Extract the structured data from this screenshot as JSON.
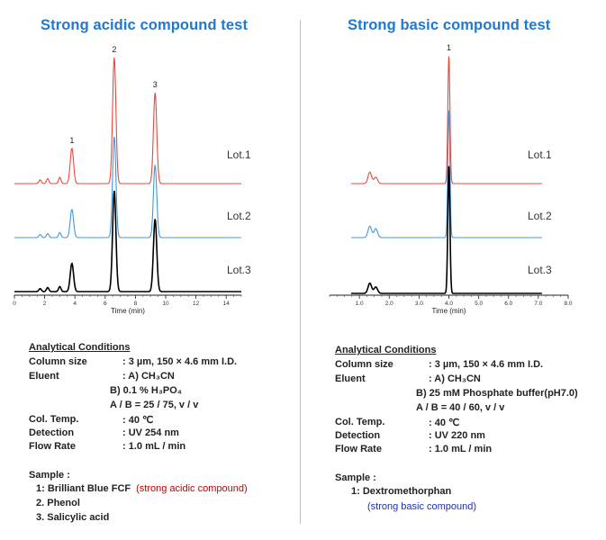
{
  "left": {
    "title": "Strong acidic compound test",
    "chart_data": {
      "type": "line",
      "title": "Strong acidic compound test",
      "xlabel": "Time (min)",
      "ylabel": "",
      "xlim": [
        0,
        15
      ],
      "x_ticks": [
        0,
        2,
        4,
        6,
        8,
        10,
        12,
        14
      ],
      "x_tick_labels": [
        "0",
        "2",
        "4",
        "6",
        "8",
        "10",
        "12",
        "14"
      ],
      "peaks": [
        {
          "label": "1",
          "time": 3.8
        },
        {
          "label": "2",
          "time": 6.6
        },
        {
          "label": "3",
          "time": 9.3
        }
      ],
      "series": [
        {
          "name": "Lot.1",
          "color": "#e8483a",
          "peak_heights": [
            0.28,
            1.0,
            0.72
          ],
          "minor_peaks": [
            [
              1.7,
              0.03
            ],
            [
              2.2,
              0.04
            ],
            [
              3.0,
              0.05
            ]
          ]
        },
        {
          "name": "Lot.2",
          "color": "#3f98e0",
          "peak_heights": [
            0.28,
            1.0,
            0.72
          ],
          "minor_peaks": [
            [
              1.7,
              0.03
            ],
            [
              2.2,
              0.04
            ],
            [
              3.0,
              0.05
            ]
          ]
        },
        {
          "name": "Lot.3",
          "color": "#000000",
          "peak_heights": [
            0.28,
            1.0,
            0.72
          ],
          "minor_peaks": [
            [
              1.7,
              0.03
            ],
            [
              2.2,
              0.04
            ],
            [
              3.0,
              0.05
            ]
          ]
        }
      ]
    },
    "conditions": {
      "header": "Analytical Conditions",
      "column_label": "Column size",
      "column_value": ": 3 µm, 150 × 4.6 mm I.D.",
      "eluent_label": "Eluent",
      "eluent_a": ": A) CH₃CN",
      "eluent_b": "B) 0.1 % H₃PO₄",
      "eluent_ratio": "A / B = 25 / 75, v / v",
      "temp_label": "Col. Temp.",
      "temp_value": ": 40 ℃",
      "detect_label": "Detection",
      "detect_value": ": UV 254 nm",
      "flow_label": "Flow Rate",
      "flow_value": ": 1.0 mL / min",
      "sample_header": "Sample :",
      "sample_1": "1: Brilliant  Blue  FCF",
      "sample_1_note": "(strong acidic compound)",
      "sample_2": "2. Phenol",
      "sample_3": "3. Salicylic  acid"
    }
  },
  "right": {
    "title": "Strong basic compound test",
    "chart_data": {
      "type": "line",
      "title": "Strong basic compound test",
      "xlabel": "Time (min)",
      "ylabel": "",
      "xlim": [
        0,
        8
      ],
      "x_ticks": [
        1,
        2,
        3,
        4,
        5,
        6,
        7,
        8
      ],
      "x_tick_labels": [
        "1.0",
        "2.0",
        "3.0",
        "4.0",
        "5.0",
        "6.0",
        "7.0",
        "8.0"
      ],
      "peaks": [
        {
          "label": "1",
          "time": 4.0
        }
      ],
      "series": [
        {
          "name": "Lot.1",
          "color": "#e8483a",
          "peak_heights": [
            1.0
          ],
          "minor_peaks": [
            [
              1.35,
              0.09
            ],
            [
              1.55,
              0.05
            ]
          ]
        },
        {
          "name": "Lot.2",
          "color": "#3f98e0",
          "peak_heights": [
            1.0
          ],
          "minor_peaks": [
            [
              1.35,
              0.09
            ],
            [
              1.55,
              0.07
            ]
          ]
        },
        {
          "name": "Lot.3",
          "color": "#000000",
          "peak_heights": [
            1.0
          ],
          "minor_peaks": [
            [
              1.35,
              0.08
            ],
            [
              1.55,
              0.05
            ]
          ]
        }
      ]
    },
    "conditions": {
      "header": "Analytical Conditions",
      "column_label": "Column size",
      "column_value": ": 3 µm,  150 × 4.6 mm I.D.",
      "eluent_label": "Eluent",
      "eluent_a": ": A) CH₃CN",
      "eluent_b": "B) 25 mM Phosphate buffer(pH7.0)",
      "eluent_ratio": "A / B = 40 / 60, v / v",
      "temp_label": "Col. Temp.",
      "temp_value": ": 40 ℃",
      "detect_label": "Detection",
      "detect_value": ": UV 220 nm",
      "flow_label": "Flow Rate",
      "flow_value": ": 1.0 mL / min",
      "sample_header": "Sample :",
      "sample_1": "1: Dextromethorphan",
      "sample_1_note": "(strong basic compound)"
    }
  }
}
